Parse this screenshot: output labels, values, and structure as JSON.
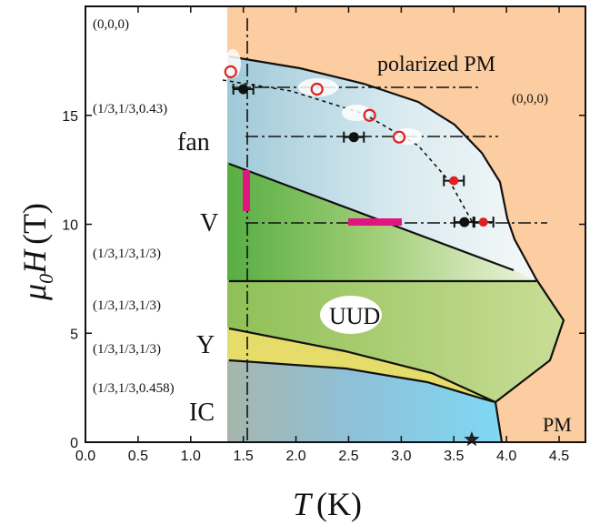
{
  "chart_data": {
    "type": "scatter",
    "xlabel_symbol": "T",
    "xlabel_unit": "(K)",
    "ylabel_symbol": "μ",
    "ylabel_subscript": "0",
    "ylabel_symbol2": "H",
    "ylabel_unit": "(T)",
    "xlim": [
      0,
      4.75
    ],
    "ylim": [
      0,
      20
    ],
    "xticks": [
      "0.0",
      "0.5",
      "1.0",
      "1.5",
      "2.0",
      "2.5",
      "3.0",
      "3.5",
      "4.0",
      "4.5"
    ],
    "yticks": [
      "0",
      "5",
      "10",
      "15"
    ],
    "phase_labels": {
      "polarized_pm": "polarized PM",
      "fan": "fan",
      "v": "V",
      "uud": "UUD",
      "y": "Y",
      "ic": "IC",
      "pm": "PM"
    },
    "propagation_vectors": {
      "top_left": "(0,0,0)",
      "polarized_pm": "(0,0,0)",
      "fan": "(1/3,1/3,0.43)",
      "v": "(1/3,1/3,1/3)",
      "uud": "(1/3,1/3,1/3)",
      "y": "(1/3,1/3,1/3)",
      "ic": "(1/3,1/3,0.458)"
    },
    "series": [
      {
        "marker": "filled-black-circle-with-errorbar",
        "points": [
          {
            "x": 1.5,
            "y": 16.2
          },
          {
            "x": 2.55,
            "y": 14.0
          },
          {
            "x": 3.6,
            "y": 10.1
          }
        ]
      },
      {
        "marker": "open-red-circle",
        "points": [
          {
            "x": 1.38,
            "y": 17.0
          },
          {
            "x": 2.2,
            "y": 16.2
          },
          {
            "x": 2.7,
            "y": 15.0
          },
          {
            "x": 2.98,
            "y": 14.0
          }
        ]
      },
      {
        "marker": "filled-red-circle",
        "points": [
          {
            "x": 3.5,
            "y": 12.0
          },
          {
            "x": 3.78,
            "y": 10.1
          }
        ]
      },
      {
        "marker": "star",
        "points": [
          {
            "x": 3.67,
            "y": 0.0
          }
        ]
      }
    ],
    "colors": {
      "pm_region": "#fbcda0",
      "fan_region": "#c7e2ec",
      "v_region": "#7bbf55",
      "uud_region": "#a8cb6e",
      "y_region": "#e6dc6a",
      "ic_region": "#8fc0d8",
      "magenta_bar": "#e0157f",
      "red_marker": "#e02020"
    }
  }
}
